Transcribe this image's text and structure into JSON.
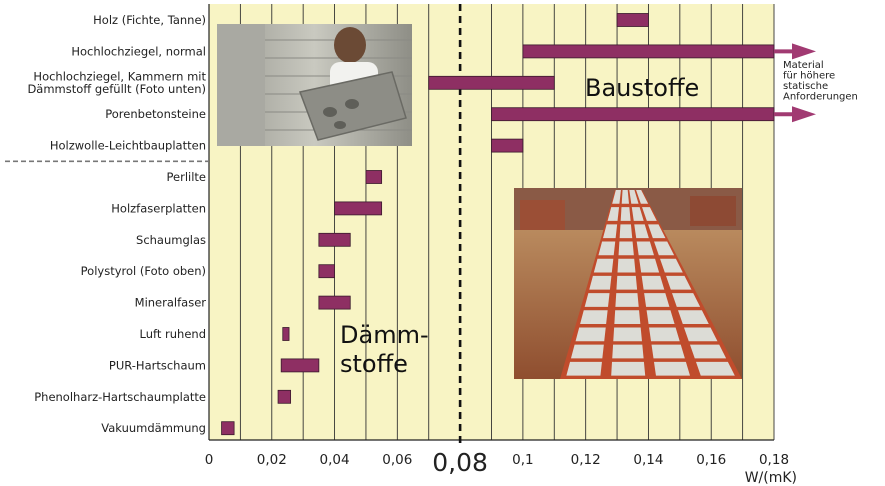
{
  "chart_data": {
    "type": "bar",
    "orientation": "horizontal",
    "subtype": "range",
    "xlabel": "W/(mK)",
    "xlim": [
      0,
      0.18
    ],
    "x_ticks": [
      "0",
      "0,02",
      "0,04",
      "0,06",
      "0,08",
      "0,1",
      "0,12",
      "0,14",
      "0,16",
      "0,18"
    ],
    "highlighted_tick": "0,08",
    "reference_line": 0.08,
    "categories": [
      "Holz (Fichte, Tanne)",
      "Hochlochziegel, normal",
      "Hochlochziegel, Kammern mit|Dämmstoff gefüllt (Foto unten)",
      "Porenbetonsteine",
      "Holzwolle-Leichtbauplatten",
      "Perlilte",
      "Holzfaserplatten",
      "Schaumglas",
      "Polystyrol (Foto oben)",
      "Mineralfaser",
      "Luft ruhend",
      "PUR-Hartschaum",
      "Phenolharz-Hartschaumplatte",
      "Vakuumdämmung"
    ],
    "ranges": [
      [
        0.13,
        0.14
      ],
      [
        0.1,
        0.18
      ],
      [
        0.07,
        0.11
      ],
      [
        0.09,
        0.18
      ],
      [
        0.09,
        0.1
      ],
      [
        0.05,
        0.055
      ],
      [
        0.04,
        0.055
      ],
      [
        0.035,
        0.045
      ],
      [
        0.035,
        0.04
      ],
      [
        0.035,
        0.045
      ],
      [
        0.0235,
        0.0255
      ],
      [
        0.023,
        0.035
      ],
      [
        0.022,
        0.026
      ],
      [
        0.004,
        0.008
      ]
    ],
    "extends_beyond": [
      false,
      true,
      false,
      true,
      false,
      false,
      false,
      false,
      false,
      false,
      false,
      false,
      false,
      false
    ],
    "group_labels": {
      "upper": "Baustoffe",
      "lower_line1": "Dämm-",
      "lower_line2": "stoffe"
    },
    "annotation": [
      "Material",
      "für höhere",
      "statische",
      "Anforderungen"
    ],
    "colors": {
      "bar": "#8e2f63",
      "bar_border": "#3a1a2c",
      "background": "#f8f4c4",
      "grid": "#333333",
      "arrow": "#a13a72"
    }
  },
  "photos": {
    "top": "worker-carrying-insulated-block",
    "bottom": "wall-of-filled-bricks"
  }
}
